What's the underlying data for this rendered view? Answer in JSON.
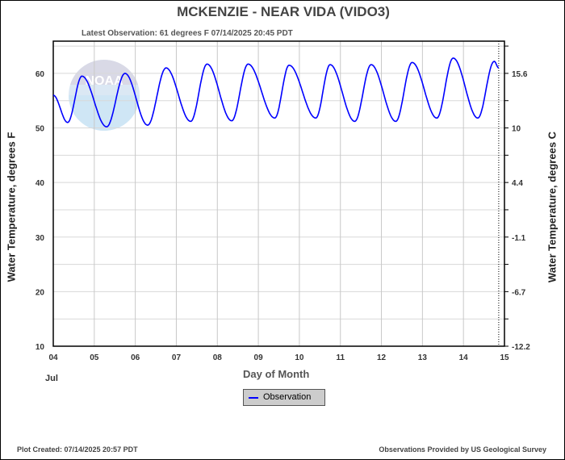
{
  "title": "MCKENZIE - NEAR VIDA  (VIDO3)",
  "latest": "Latest Observation: 61 degrees F 07/14/2025 20:45 PDT",
  "plot_created": "Plot Created: 07/14/2025 20:57 PDT",
  "provided": "Observations Provided by US Geological Survey",
  "month_label": "Jul",
  "watermark": "NOAA",
  "legend": {
    "label": "Observation",
    "color": "#0000ff"
  },
  "chart_data": {
    "type": "line",
    "title": "MCKENZIE - NEAR VIDA  (VIDO3)",
    "xlabel": "Day of Month",
    "ylabel": "Water Temperature, degrees F",
    "y2label": "Water Temperature, degrees C",
    "xlim": [
      4,
      15
    ],
    "ylim": [
      10,
      65.9
    ],
    "grid": true,
    "legend_position": "bottom-center",
    "x_ticks": [
      "04",
      "05",
      "06",
      "07",
      "08",
      "09",
      "10",
      "11",
      "12",
      "13",
      "14",
      "15"
    ],
    "y_ticks": [
      10,
      20,
      30,
      40,
      50,
      60
    ],
    "y2_ticks": [
      {
        "f": 10,
        "label": "-12.2"
      },
      {
        "f": 20,
        "label": "-6.7"
      },
      {
        "f": 30,
        "label": "-1.1"
      },
      {
        "f": 40,
        "label": "4.4"
      },
      {
        "f": 50,
        "label": "10"
      },
      {
        "f": 60,
        "label": "15.6"
      }
    ],
    "latest_observation_x": 14.86,
    "series": [
      {
        "name": "Observation",
        "color": "#0000ff",
        "points": [
          [
            4.0,
            56
          ],
          [
            4.35,
            51
          ],
          [
            4.7,
            59.5
          ],
          [
            5.3,
            50.2
          ],
          [
            5.75,
            60
          ],
          [
            6.3,
            50.5
          ],
          [
            6.75,
            61
          ],
          [
            7.35,
            51.2
          ],
          [
            7.75,
            61.7
          ],
          [
            8.35,
            51.3
          ],
          [
            8.75,
            61.7
          ],
          [
            9.4,
            51.8
          ],
          [
            9.75,
            61.5
          ],
          [
            10.4,
            51.8
          ],
          [
            10.75,
            61.6
          ],
          [
            11.35,
            51.2
          ],
          [
            11.75,
            61.6
          ],
          [
            12.35,
            51.2
          ],
          [
            12.75,
            62
          ],
          [
            13.35,
            51.8
          ],
          [
            13.75,
            62.8
          ],
          [
            14.35,
            51.8
          ],
          [
            14.75,
            62.2
          ],
          [
            14.86,
            61
          ]
        ]
      }
    ]
  }
}
